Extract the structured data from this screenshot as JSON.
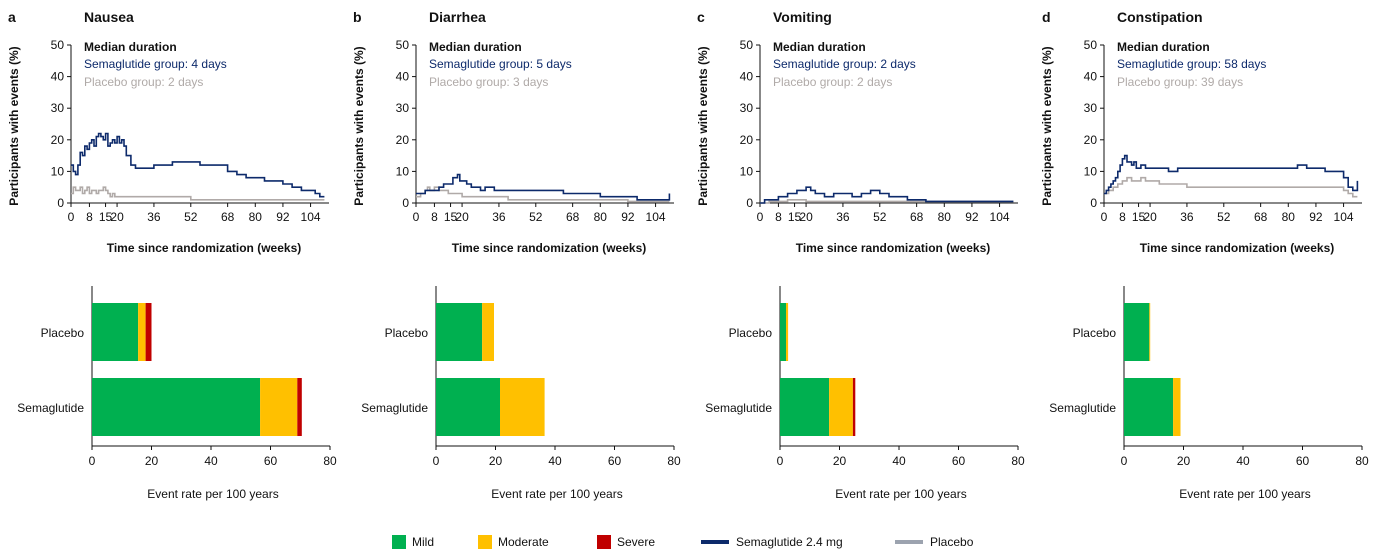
{
  "colors": {
    "mild": "#00b050",
    "moderate": "#ffc000",
    "severe": "#c00000",
    "semaglutide": "#0d2a6b",
    "placebo": "#b0aaa8",
    "placebo_legend": "#9ca3af"
  },
  "legend": [
    {
      "label": "Mild",
      "key": "mild",
      "kind": "box"
    },
    {
      "label": "Moderate",
      "key": "moderate",
      "kind": "box"
    },
    {
      "label": "Severe",
      "key": "severe",
      "kind": "box"
    },
    {
      "label": "Semaglutide 2.4 mg",
      "key": "semaglutide",
      "kind": "line"
    },
    {
      "label": "Placebo",
      "key": "placebo_legend",
      "kind": "line"
    }
  ],
  "chart_data": [
    {
      "type": "line",
      "panel_label": "a",
      "title": "Nausea",
      "xlabel": "Time since randomization (weeks)",
      "ylabel": "Participants with events (%)",
      "xlim": [
        0,
        112
      ],
      "ylim": [
        0,
        50
      ],
      "xticks": [
        0,
        8,
        15,
        20,
        36,
        52,
        68,
        80,
        92,
        104
      ],
      "yticks": [
        0,
        10,
        20,
        30,
        40,
        50
      ],
      "grid": false,
      "annotation": {
        "heading": "Median duration",
        "semaglutide": "Semaglutide group: 4 days",
        "placebo": "Placebo group: 2 days"
      },
      "series": [
        {
          "name": "Semaglutide 2.4 mg",
          "color_key": "semaglutide",
          "x": [
            0,
            1,
            2,
            3,
            4,
            5,
            6,
            7,
            8,
            9,
            10,
            11,
            12,
            13,
            14,
            15,
            16,
            17,
            18,
            19,
            20,
            21,
            22,
            23,
            24,
            26,
            28,
            30,
            32,
            34,
            36,
            40,
            44,
            48,
            52,
            56,
            60,
            64,
            68,
            72,
            76,
            80,
            84,
            88,
            92,
            96,
            100,
            104,
            106,
            108,
            110
          ],
          "y": [
            12,
            10,
            9,
            12,
            16,
            15,
            18,
            17,
            19,
            20,
            18,
            21,
            22,
            21,
            20,
            22,
            18,
            19,
            20,
            19,
            21,
            19,
            20,
            18,
            15,
            12,
            11,
            11,
            11,
            11,
            12,
            12,
            13,
            13,
            13,
            12,
            12,
            12,
            10,
            9,
            8,
            8,
            7,
            7,
            6,
            5,
            4,
            4,
            3,
            2,
            2
          ]
        },
        {
          "name": "Placebo",
          "color_key": "placebo",
          "x": [
            0,
            1,
            2,
            3,
            4,
            5,
            6,
            7,
            8,
            9,
            10,
            11,
            12,
            13,
            14,
            15,
            16,
            17,
            18,
            19,
            20,
            22,
            24,
            26,
            30,
            36,
            44,
            52,
            60,
            68,
            80,
            92,
            104,
            110
          ],
          "y": [
            3,
            5,
            4,
            4,
            5,
            3,
            4,
            5,
            3,
            4,
            4,
            3,
            4,
            4,
            5,
            4,
            3,
            2,
            3,
            2,
            2,
            2,
            2,
            2,
            2,
            2,
            2,
            1,
            1,
            1,
            1,
            1,
            1,
            1
          ]
        }
      ]
    },
    {
      "type": "line",
      "panel_label": "b",
      "title": "Diarrhea",
      "xlabel": "Time since randomization (weeks)",
      "ylabel": "Participants with events (%)",
      "xlim": [
        0,
        112
      ],
      "ylim": [
        0,
        50
      ],
      "xticks": [
        0,
        8,
        15,
        20,
        36,
        52,
        68,
        80,
        92,
        104
      ],
      "yticks": [
        0,
        10,
        20,
        30,
        40,
        50
      ],
      "grid": false,
      "annotation": {
        "heading": "Median duration",
        "semaglutide": "Semaglutide group: 5 days",
        "placebo": "Placebo group: 3 days"
      },
      "series": [
        {
          "name": "Semaglutide 2.4 mg",
          "color_key": "semaglutide",
          "x": [
            0,
            2,
            4,
            6,
            8,
            10,
            12,
            14,
            16,
            18,
            19,
            20,
            22,
            24,
            26,
            28,
            30,
            34,
            40,
            48,
            56,
            64,
            72,
            80,
            88,
            96,
            104,
            108,
            110
          ],
          "y": [
            3,
            3,
            4,
            4,
            4,
            5,
            6,
            6,
            8,
            9,
            7,
            7,
            6,
            5,
            5,
            4,
            5,
            4,
            4,
            4,
            4,
            3,
            3,
            2,
            2,
            1,
            1,
            1,
            3
          ]
        },
        {
          "name": "Placebo",
          "color_key": "placebo",
          "x": [
            0,
            2,
            4,
            5,
            6,
            8,
            10,
            12,
            14,
            16,
            18,
            20,
            24,
            28,
            32,
            40,
            52,
            68,
            80,
            92,
            104,
            110
          ],
          "y": [
            2,
            3,
            4,
            5,
            4,
            5,
            4,
            4,
            3,
            3,
            3,
            2,
            2,
            2,
            2,
            1,
            1,
            1,
            1,
            0.5,
            0.5,
            0.5
          ]
        }
      ]
    },
    {
      "type": "line",
      "panel_label": "c",
      "title": "Vomiting",
      "xlabel": "Time since randomization (weeks)",
      "ylabel": "Participants with events (%)",
      "xlim": [
        0,
        112
      ],
      "ylim": [
        0,
        50
      ],
      "xticks": [
        0,
        8,
        15,
        20,
        36,
        52,
        68,
        80,
        92,
        104
      ],
      "yticks": [
        0,
        10,
        20,
        30,
        40,
        50
      ],
      "grid": false,
      "annotation": {
        "heading": "Median duration",
        "semaglutide": "Semaglutide group: 2 days",
        "placebo": "Placebo group: 2 days"
      },
      "series": [
        {
          "name": "Semaglutide 2.4 mg",
          "color_key": "semaglutide",
          "x": [
            0,
            2,
            4,
            6,
            8,
            10,
            12,
            14,
            16,
            18,
            20,
            22,
            24,
            26,
            28,
            30,
            32,
            36,
            40,
            44,
            48,
            52,
            56,
            60,
            64,
            68,
            72,
            80,
            90,
            100,
            110
          ],
          "y": [
            0,
            1,
            1,
            1,
            2,
            2,
            3,
            3,
            4,
            4,
            5,
            4,
            3,
            3,
            2,
            2,
            3,
            3,
            2,
            3,
            4,
            3,
            2,
            2,
            1,
            1,
            0.5,
            0.5,
            0.5,
            0.5,
            0.5
          ]
        },
        {
          "name": "Placebo",
          "color_key": "placebo",
          "x": [
            0,
            4,
            8,
            12,
            16,
            20,
            24,
            30,
            40,
            52,
            68,
            80,
            92,
            104,
            110
          ],
          "y": [
            0,
            0.5,
            0.5,
            1,
            1,
            0.5,
            0.5,
            0.5,
            0.5,
            0.5,
            0.5,
            0.5,
            0.5,
            0.5,
            0.5
          ]
        }
      ]
    },
    {
      "type": "line",
      "panel_label": "d",
      "title": "Constipation",
      "xlabel": "Time since randomization (weeks)",
      "ylabel": "Participants with events (%)",
      "xlim": [
        0,
        112
      ],
      "ylim": [
        0,
        50
      ],
      "xticks": [
        0,
        8,
        15,
        20,
        36,
        52,
        68,
        80,
        92,
        104
      ],
      "yticks": [
        0,
        10,
        20,
        30,
        40,
        50
      ],
      "grid": false,
      "annotation": {
        "heading": "Median duration",
        "semaglutide": "Semaglutide group: 58 days",
        "placebo": "Placebo group: 39 days"
      },
      "series": [
        {
          "name": "Semaglutide 2.4 mg",
          "color_key": "semaglutide",
          "x": [
            0,
            1,
            2,
            3,
            4,
            5,
            6,
            7,
            8,
            9,
            10,
            11,
            12,
            13,
            14,
            15,
            16,
            18,
            20,
            24,
            28,
            32,
            36,
            40,
            44,
            48,
            52,
            56,
            60,
            64,
            68,
            72,
            76,
            80,
            84,
            88,
            92,
            96,
            100,
            104,
            106,
            108,
            110
          ],
          "y": [
            3,
            4,
            5,
            6,
            7,
            8,
            10,
            12,
            14,
            15,
            13,
            13,
            12,
            13,
            11,
            11,
            12,
            11,
            11,
            11,
            10,
            11,
            11,
            11,
            11,
            11,
            11,
            11,
            11,
            11,
            11,
            11,
            11,
            11,
            12,
            11,
            11,
            10,
            10,
            8,
            5,
            4,
            7
          ]
        },
        {
          "name": "Placebo",
          "color_key": "placebo",
          "x": [
            0,
            2,
            4,
            6,
            8,
            10,
            12,
            14,
            16,
            18,
            20,
            24,
            28,
            36,
            44,
            52,
            60,
            68,
            80,
            92,
            100,
            104,
            106,
            108,
            110
          ],
          "y": [
            3,
            4,
            5,
            6,
            7,
            8,
            7,
            7,
            8,
            7,
            7,
            6,
            6,
            5,
            5,
            5,
            5,
            5,
            5,
            5,
            5,
            4,
            3,
            2,
            2
          ]
        }
      ]
    },
    {
      "type": "bar",
      "orientation": "horizontal",
      "stacked": true,
      "title": "",
      "xlabel": "Event rate per 100 years",
      "xlim": [
        0,
        80
      ],
      "xticks": [
        0,
        20,
        40,
        60,
        80
      ],
      "categories": [
        "Placebo",
        "Semaglutide"
      ],
      "series": [
        {
          "name": "Mild",
          "color_key": "mild",
          "values": [
            15.5,
            56.5
          ]
        },
        {
          "name": "Moderate",
          "color_key": "moderate",
          "values": [
            2.5,
            12.5
          ]
        },
        {
          "name": "Severe",
          "color_key": "severe",
          "values": [
            2.0,
            1.5
          ]
        }
      ]
    },
    {
      "type": "bar",
      "orientation": "horizontal",
      "stacked": true,
      "title": "",
      "xlabel": "Event rate per 100 years",
      "xlim": [
        0,
        80
      ],
      "xticks": [
        0,
        20,
        40,
        60,
        80
      ],
      "categories": [
        "Placebo",
        "Semaglutide"
      ],
      "series": [
        {
          "name": "Mild",
          "color_key": "mild",
          "values": [
            15.5,
            21.5
          ]
        },
        {
          "name": "Moderate",
          "color_key": "moderate",
          "values": [
            4.0,
            15.0
          ]
        },
        {
          "name": "Severe",
          "color_key": "severe",
          "values": [
            0,
            0
          ]
        }
      ]
    },
    {
      "type": "bar",
      "orientation": "horizontal",
      "stacked": true,
      "title": "",
      "xlabel": "Event rate per 100 years",
      "xlim": [
        0,
        80
      ],
      "xticks": [
        0,
        20,
        40,
        60,
        80
      ],
      "categories": [
        "Placebo",
        "Semaglutide"
      ],
      "series": [
        {
          "name": "Mild",
          "color_key": "mild",
          "values": [
            2.0,
            16.5
          ]
        },
        {
          "name": "Moderate",
          "color_key": "moderate",
          "values": [
            0.7,
            8.0
          ]
        },
        {
          "name": "Severe",
          "color_key": "severe",
          "values": [
            0,
            0.8
          ]
        }
      ]
    },
    {
      "type": "bar",
      "orientation": "horizontal",
      "stacked": true,
      "title": "",
      "xlabel": "Event rate per 100 years",
      "xlim": [
        0,
        80
      ],
      "xticks": [
        0,
        20,
        40,
        60,
        80
      ],
      "categories": [
        "Placebo",
        "Semaglutide"
      ],
      "series": [
        {
          "name": "Mild",
          "color_key": "mild",
          "values": [
            8.5,
            16.5
          ]
        },
        {
          "name": "Moderate",
          "color_key": "moderate",
          "values": [
            0.3,
            2.5
          ]
        },
        {
          "name": "Severe",
          "color_key": "severe",
          "values": [
            0,
            0
          ]
        }
      ]
    }
  ]
}
